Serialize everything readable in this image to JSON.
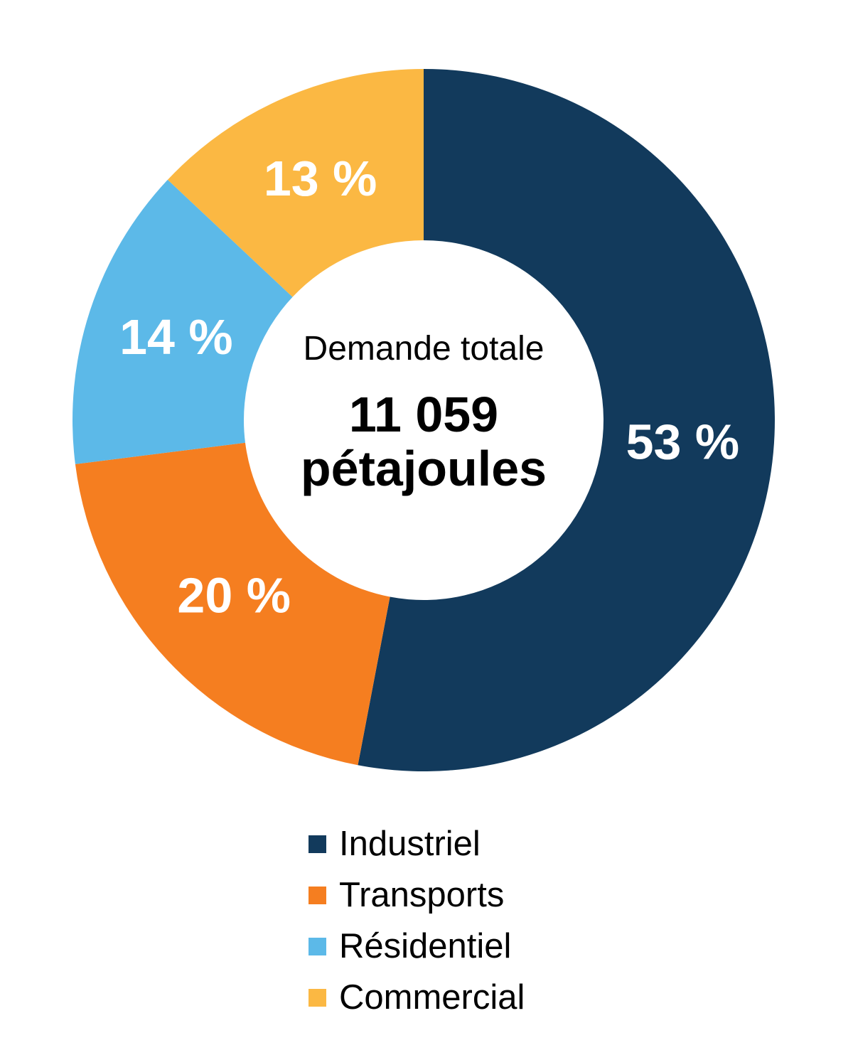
{
  "chart_data": {
    "type": "pie",
    "subtype": "donut",
    "title": "",
    "center_label": {
      "line1": "Demande totale",
      "value": "11 059",
      "unit": "pétajoules"
    },
    "series": [
      {
        "name": "Industriel",
        "value_pct": 53,
        "label": "53 %",
        "color": "#123A5C"
      },
      {
        "name": "Transports",
        "value_pct": 20,
        "label": "20 %",
        "color": "#F57E20"
      },
      {
        "name": "Résidentiel",
        "value_pct": 14,
        "label": "14 %",
        "color": "#5CB9E8"
      },
      {
        "name": "Commercial",
        "value_pct": 13,
        "label": "13 %",
        "color": "#FBB843"
      }
    ],
    "slice_label_color": "#FFFFFF",
    "start_angle_deg": 0,
    "direction": "clockwise",
    "legend_position": "bottom",
    "background": "#FFFFFF"
  }
}
